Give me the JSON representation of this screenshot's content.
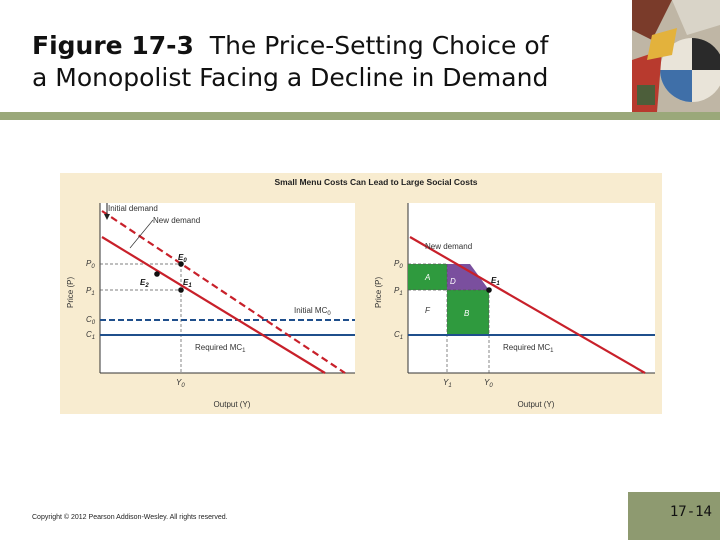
{
  "slide": {
    "title_bold": "Figure 17-3",
    "title_rest": "The Price-Setting Choice of",
    "title_line2": "a Monopolist Facing a Decline in Demand",
    "copyright": "Copyright © 2012 Pearson Addison-Wesley. All rights reserved.",
    "page_number": "17-14"
  },
  "figure": {
    "header": "Small Menu Costs Can Lead to Large Social Costs",
    "left": {
      "y_axis_label": "Price (P)",
      "x_axis_label": "Output (Y)",
      "initial_demand": "Initial demand",
      "new_demand": "New demand",
      "initial_mc": "Initial MC",
      "initial_mc_sub": "0",
      "required_mc": "Required MC",
      "required_mc_sub": "1",
      "p0": "P",
      "p0_sub": "0",
      "p1": "P",
      "p1_sub": "1",
      "c0": "C",
      "c0_sub": "0",
      "c1": "C",
      "c1_sub": "1",
      "y0": "Y",
      "y0_sub": "0",
      "e0": "E",
      "e0_sub": "0",
      "e1": "E",
      "e1_sub": "1",
      "e2": "E",
      "e2_sub": "2"
    },
    "right": {
      "y_axis_label": "Price (P)",
      "x_axis_label": "Output (Y)",
      "new_demand": "New demand",
      "required_mc": "Required MC",
      "required_mc_sub": "1",
      "p0": "P",
      "p0_sub": "0",
      "p1": "P",
      "p1_sub": "1",
      "c1": "C",
      "c1_sub": "1",
      "y1": "Y",
      "y1_sub": "1",
      "y0": "Y",
      "y0_sub": "0",
      "e1": "E",
      "e1_sub": "1",
      "area_a": "A",
      "area_b": "B",
      "area_d": "D",
      "area_f": "F"
    }
  },
  "colors": {
    "figure_bg": "#f8ecd0",
    "demand_red": "#c8202a",
    "mc_blue": "#1f4f8c",
    "area_green": "#2f9a3e",
    "area_purple": "#7a4f9e",
    "rule_green": "#9aa87a"
  }
}
